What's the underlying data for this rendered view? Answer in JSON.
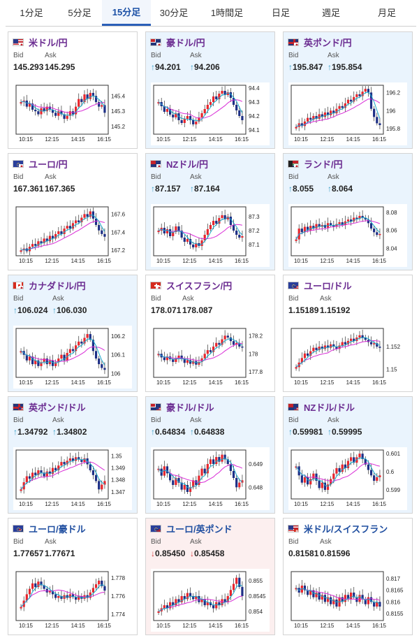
{
  "tabs": [
    {
      "label": "1分足",
      "active": false
    },
    {
      "label": "5分足",
      "active": false
    },
    {
      "label": "15分足",
      "active": true
    },
    {
      "label": "30分足",
      "active": false
    },
    {
      "label": "1時間足",
      "active": false
    },
    {
      "label": "日足",
      "active": false
    },
    {
      "label": "週足",
      "active": false
    },
    {
      "label": "月足",
      "active": false
    }
  ],
  "labels": {
    "bid": "Bid",
    "ask": "Ask"
  },
  "colors": {
    "up_candle": "#e8262d",
    "down_candle": "#1d2f86",
    "ma_short": "#19a7c9",
    "ma_long": "#d92cd6",
    "arrow_up": "#3a9fc7",
    "arrow_down": "#d63a3a"
  },
  "cards": [
    {
      "pair": "米ドル/円",
      "flag": "us-jp",
      "bg": "white",
      "dir": "",
      "bid": "145.293",
      "ask": "145.295",
      "chart_data": {
        "type": "candlestick",
        "x_labels": [
          "10:15",
          "12:15",
          "14:15",
          "16:15"
        ],
        "y_ticks": [
          "145.4",
          "145.3",
          "145.2"
        ],
        "tick_values": [
          145.4,
          145.3,
          145.2
        ],
        "ylim": [
          145.15,
          145.47
        ],
        "close": [
          145.36,
          145.37,
          145.33,
          145.35,
          145.31,
          145.3,
          145.28,
          145.32,
          145.3,
          145.33,
          145.31,
          145.29,
          145.27,
          145.3,
          145.28,
          145.25,
          145.27,
          145.3,
          145.28,
          145.33,
          145.38,
          145.36,
          145.41,
          145.38,
          145.42,
          145.4,
          145.36,
          145.33,
          145.34,
          145.29
        ]
      }
    },
    {
      "pair": "豪ドル/円",
      "flag": "au-jp",
      "bg": "blue",
      "dir": "up",
      "bid": "94.201",
      "ask": "94.206",
      "chart_data": {
        "type": "candlestick",
        "x_labels": [
          "10:15",
          "12:15",
          "14:15",
          "16:15"
        ],
        "y_ticks": [
          "94.4",
          "94.3",
          "94.2",
          "94.1"
        ],
        "tick_values": [
          94.4,
          94.3,
          94.2,
          94.1
        ],
        "ylim": [
          94.07,
          94.42
        ],
        "close": [
          94.3,
          94.27,
          94.23,
          94.25,
          94.21,
          94.19,
          94.22,
          94.17,
          94.15,
          94.18,
          94.2,
          94.17,
          94.14,
          94.16,
          94.19,
          94.22,
          94.25,
          94.28,
          94.3,
          94.34,
          94.32,
          94.36,
          94.38,
          94.35,
          94.37,
          94.33,
          94.28,
          94.24,
          94.2,
          94.17
        ]
      }
    },
    {
      "pair": "英ポンド/円",
      "flag": "gb-jp",
      "bg": "blue",
      "dir": "up",
      "bid": "195.847",
      "ask": "195.854",
      "chart_data": {
        "type": "candlestick",
        "x_labels": [
          "10:15",
          "12:15",
          "14:15",
          "16:15"
        ],
        "y_ticks": [
          "196.2",
          "196",
          "195.8"
        ],
        "tick_values": [
          196.2,
          196.0,
          195.8
        ],
        "ylim": [
          195.74,
          196.28
        ],
        "close": [
          195.82,
          195.86,
          195.83,
          195.88,
          195.92,
          195.9,
          195.94,
          195.91,
          195.96,
          195.93,
          195.98,
          195.95,
          196.0,
          195.97,
          196.02,
          196.05,
          196.03,
          196.08,
          196.12,
          196.1,
          196.15,
          196.18,
          196.16,
          196.21,
          196.24,
          196.2,
          196.02,
          195.93,
          195.86,
          195.84
        ]
      }
    },
    {
      "pair": "ユーロ/円",
      "flag": "eu-jp",
      "bg": "white",
      "dir": "",
      "bid": "167.361",
      "ask": "167.365",
      "chart_data": {
        "type": "candlestick",
        "x_labels": [
          "10:15",
          "12:15",
          "14:15",
          "16:15"
        ],
        "y_ticks": [
          "167.6",
          "167.4",
          "167.2"
        ],
        "tick_values": [
          167.6,
          167.4,
          167.2
        ],
        "ylim": [
          167.14,
          167.68
        ],
        "close": [
          167.2,
          167.22,
          167.19,
          167.24,
          167.27,
          167.25,
          167.3,
          167.28,
          167.33,
          167.3,
          167.36,
          167.33,
          167.38,
          167.41,
          167.38,
          167.44,
          167.47,
          167.44,
          167.5,
          167.53,
          167.51,
          167.56,
          167.6,
          167.57,
          167.63,
          167.55,
          167.48,
          167.42,
          167.38,
          167.35
        ]
      }
    },
    {
      "pair": "NZドル/円",
      "flag": "nz-jp",
      "bg": "blue",
      "dir": "up",
      "bid": "87.157",
      "ask": "87.164",
      "chart_data": {
        "type": "candlestick",
        "x_labels": [
          "10:15",
          "12:15",
          "14:15",
          "16:15"
        ],
        "y_ticks": [
          "87.3",
          "87.2",
          "87.1"
        ],
        "tick_values": [
          87.3,
          87.2,
          87.1
        ],
        "ylim": [
          87.02,
          87.37
        ],
        "close": [
          87.2,
          87.22,
          87.18,
          87.21,
          87.16,
          87.19,
          87.23,
          87.2,
          87.15,
          87.12,
          87.14,
          87.1,
          87.08,
          87.11,
          87.09,
          87.13,
          87.17,
          87.21,
          87.24,
          87.27,
          87.25,
          87.29,
          87.31,
          87.28,
          87.3,
          87.24,
          87.2,
          87.17,
          87.15,
          87.16
        ]
      }
    },
    {
      "pair": "ランド/円",
      "flag": "za-jp",
      "bg": "blue",
      "dir": "up",
      "bid": "8.055",
      "ask": "8.064",
      "chart_data": {
        "type": "candlestick",
        "x_labels": [
          "10:15",
          "12:15",
          "14:15",
          "16:15"
        ],
        "y_ticks": [
          "8.08",
          "8.06",
          "8.04"
        ],
        "tick_values": [
          8.08,
          8.06,
          8.04
        ],
        "ylim": [
          8.032,
          8.086
        ],
        "close": [
          8.05,
          8.062,
          8.058,
          8.064,
          8.06,
          8.065,
          8.062,
          8.067,
          8.064,
          8.066,
          8.063,
          8.068,
          8.066,
          8.064,
          8.067,
          8.069,
          8.066,
          8.07,
          8.072,
          8.07,
          8.074,
          8.073,
          8.076,
          8.074,
          8.072,
          8.068,
          8.062,
          8.058,
          8.055,
          8.056
        ]
      }
    },
    {
      "pair": "カナダドル/円",
      "flag": "ca-jp",
      "bg": "blue",
      "dir": "up",
      "bid": "106.024",
      "ask": "106.030",
      "chart_data": {
        "type": "candlestick",
        "x_labels": [
          "10:15",
          "12:15",
          "14:15",
          "16:15"
        ],
        "y_ticks": [
          "106.2",
          "106.1",
          "106"
        ],
        "tick_values": [
          106.2,
          106.1,
          106.0
        ],
        "ylim": [
          105.98,
          106.24
        ],
        "close": [
          106.12,
          106.1,
          106.07,
          106.09,
          106.05,
          106.07,
          106.04,
          106.06,
          106.08,
          106.05,
          106.07,
          106.04,
          106.06,
          106.08,
          106.1,
          106.07,
          106.11,
          106.13,
          106.12,
          106.15,
          106.17,
          106.16,
          106.19,
          106.21,
          106.18,
          106.12,
          106.08,
          106.05,
          106.03,
          106.02
        ]
      }
    },
    {
      "pair": "スイスフラン/円",
      "flag": "ch-jp",
      "bg": "white",
      "dir": "",
      "bid": "178.071",
      "ask": "178.087",
      "chart_data": {
        "type": "candlestick",
        "x_labels": [
          "10:15",
          "12:15",
          "14:15",
          "16:15"
        ],
        "y_ticks": [
          "178.2",
          "178",
          "177.8"
        ],
        "tick_values": [
          178.2,
          178.0,
          177.8
        ],
        "ylim": [
          177.74,
          178.28
        ],
        "close": [
          178.0,
          177.96,
          177.93,
          177.97,
          177.94,
          177.91,
          177.95,
          177.98,
          177.94,
          177.9,
          177.93,
          177.89,
          177.92,
          177.88,
          177.91,
          177.95,
          178.0,
          178.04,
          178.02,
          178.08,
          178.12,
          178.1,
          178.16,
          178.2,
          178.18,
          178.14,
          178.1,
          178.12,
          178.08,
          178.07
        ]
      }
    },
    {
      "pair": "ユーロ/ドル",
      "flag": "eu-us",
      "bg": "white",
      "dir": "",
      "bid": "1.15189",
      "ask": "1.15192",
      "chart_data": {
        "type": "candlestick",
        "x_labels": [
          "10:15",
          "12:15",
          "14:15",
          "16:15"
        ],
        "y_ticks": [
          "1.152",
          "1.15"
        ],
        "tick_values": [
          1.152,
          1.15
        ],
        "ylim": [
          1.1493,
          1.1536
        ],
        "close": [
          1.1502,
          1.1506,
          1.151,
          1.1514,
          1.1512,
          1.1516,
          1.1519,
          1.1517,
          1.152,
          1.1518,
          1.1521,
          1.1519,
          1.1522,
          1.152,
          1.1518,
          1.1521,
          1.1524,
          1.1522,
          1.1525,
          1.1527,
          1.1525,
          1.1528,
          1.153,
          1.1528,
          1.1526,
          1.1524,
          1.1522,
          1.1523,
          1.152,
          1.1519
        ]
      }
    },
    {
      "pair": "英ポンド/ドル",
      "flag": "gb-us",
      "bg": "blue",
      "dir": "up",
      "bid": "1.34792",
      "ask": "1.34802",
      "chart_data": {
        "type": "candlestick",
        "x_labels": [
          "10:15",
          "12:15",
          "14:15",
          "16:15"
        ],
        "y_ticks": [
          "1.35",
          "1.349",
          "1.348",
          "1.347"
        ],
        "tick_values": [
          1.35,
          1.349,
          1.348,
          1.347
        ],
        "ylim": [
          1.3464,
          1.3505
        ],
        "close": [
          1.3472,
          1.3478,
          1.3483,
          1.3481,
          1.3486,
          1.3484,
          1.3488,
          1.3486,
          1.3483,
          1.3487,
          1.3485,
          1.349,
          1.3488,
          1.3492,
          1.3495,
          1.3493,
          1.3496,
          1.3498,
          1.3496,
          1.3499,
          1.3497,
          1.3495,
          1.3498,
          1.3493,
          1.3488,
          1.3484,
          1.3479,
          1.3472,
          1.3476,
          1.3479
        ]
      }
    },
    {
      "pair": "豪ドル/ドル",
      "flag": "au-us",
      "bg": "blue",
      "dir": "up",
      "bid": "0.64834",
      "ask": "0.64838",
      "chart_data": {
        "type": "candlestick",
        "x_labels": [
          "10:15",
          "12:15",
          "14:15",
          "16:15"
        ],
        "y_ticks": [
          "0.649",
          "0.648"
        ],
        "tick_values": [
          0.649,
          0.648
        ],
        "ylim": [
          0.6475,
          0.6496
        ],
        "close": [
          0.6488,
          0.6485,
          0.6489,
          0.6486,
          0.6483,
          0.6481,
          0.6484,
          0.6482,
          0.6479,
          0.6481,
          0.6478,
          0.648,
          0.6483,
          0.6481,
          0.6485,
          0.6488,
          0.6486,
          0.649,
          0.6492,
          0.649,
          0.6493,
          0.6491,
          0.6494,
          0.6492,
          0.649,
          0.6487,
          0.6484,
          0.648,
          0.6482,
          0.6483
        ]
      }
    },
    {
      "pair": "NZドル/ドル",
      "flag": "nz-us",
      "bg": "blue",
      "dir": "up",
      "bid": "0.59981",
      "ask": "0.59995",
      "chart_data": {
        "type": "candlestick",
        "x_labels": [
          "10:15",
          "12:15",
          "14:15",
          "16:15"
        ],
        "y_ticks": [
          "0.601",
          "0.6",
          "0.599"
        ],
        "tick_values": [
          0.601,
          0.6,
          0.599
        ],
        "ylim": [
          0.5985,
          0.6012
        ],
        "close": [
          0.6003,
          0.5998,
          0.5994,
          0.5997,
          0.5993,
          0.5996,
          0.5999,
          0.5995,
          0.5991,
          0.5994,
          0.599,
          0.5993,
          0.5996,
          0.5999,
          0.6002,
          0.6,
          0.6004,
          0.6002,
          0.6006,
          0.6008,
          0.6005,
          0.6008,
          0.601,
          0.6007,
          0.6004,
          0.6001,
          0.5998,
          0.5995,
          0.5997,
          0.5998
        ]
      }
    },
    {
      "pair": "ユーロ/豪ドル",
      "flag": "eu-au",
      "bg": "white",
      "dir": "",
      "bid": "1.77657",
      "ask": "1.77671",
      "chart_data": {
        "type": "candlestick",
        "x_labels": [
          "10:15",
          "12:15",
          "14:15",
          "16:15"
        ],
        "y_ticks": [
          "1.778",
          "1.776",
          "1.774"
        ],
        "tick_values": [
          1.778,
          1.776,
          1.774
        ],
        "ylim": [
          1.7733,
          1.7787
        ],
        "close": [
          1.7748,
          1.7755,
          1.7762,
          1.7768,
          1.7774,
          1.777,
          1.7776,
          1.7772,
          1.7768,
          1.7764,
          1.7766,
          1.7762,
          1.7758,
          1.776,
          1.7757,
          1.7761,
          1.7758,
          1.7762,
          1.7759,
          1.7756,
          1.776,
          1.7757,
          1.7761,
          1.7758,
          1.7764,
          1.7769,
          1.7773,
          1.7777,
          1.7771,
          1.7766
        ]
      }
    },
    {
      "pair": "ユーロ/英ポンド",
      "flag": "eu-gb",
      "bg": "red",
      "dir": "down",
      "bid": "0.85450",
      "ask": "0.85458",
      "chart_data": {
        "type": "candlestick",
        "x_labels": [
          "10:15",
          "12:15",
          "14:15",
          "16:15"
        ],
        "y_ticks": [
          "0.855",
          "0.8545",
          "0.854"
        ],
        "tick_values": [
          0.855,
          0.8545,
          0.854
        ],
        "ylim": [
          0.8537,
          0.8553
        ],
        "close": [
          0.854,
          0.8541,
          0.8542,
          0.8541,
          0.8543,
          0.8542,
          0.8544,
          0.8543,
          0.8545,
          0.8544,
          0.8546,
          0.8545,
          0.8544,
          0.8545,
          0.8543,
          0.8544,
          0.8542,
          0.8543,
          0.8542,
          0.8541,
          0.8543,
          0.8542,
          0.8544,
          0.8543,
          0.8545,
          0.8547,
          0.8549,
          0.8551,
          0.8548,
          0.8545
        ]
      }
    },
    {
      "pair": "米ドル/スイスフラン",
      "flag": "us-ch",
      "bg": "white",
      "dir": "",
      "bid": "0.81581",
      "ask": "0.81596",
      "chart_data": {
        "type": "candlestick",
        "x_labels": [
          "10:15",
          "12:15",
          "14:15",
          "16:15"
        ],
        "y_ticks": [
          "0.817",
          "0.8165",
          "0.816",
          "0.8155"
        ],
        "tick_values": [
          0.817,
          0.8165,
          0.816,
          0.8155
        ],
        "ylim": [
          0.8152,
          0.8173
        ],
        "close": [
          0.8166,
          0.8164,
          0.8167,
          0.8165,
          0.8163,
          0.8165,
          0.8162,
          0.8164,
          0.8161,
          0.8163,
          0.816,
          0.8162,
          0.8159,
          0.8161,
          0.8158,
          0.8162,
          0.816,
          0.8163,
          0.8161,
          0.8164,
          0.8162,
          0.816,
          0.8163,
          0.8161,
          0.8159,
          0.8162,
          0.816,
          0.8158,
          0.816,
          0.8158
        ]
      }
    }
  ]
}
